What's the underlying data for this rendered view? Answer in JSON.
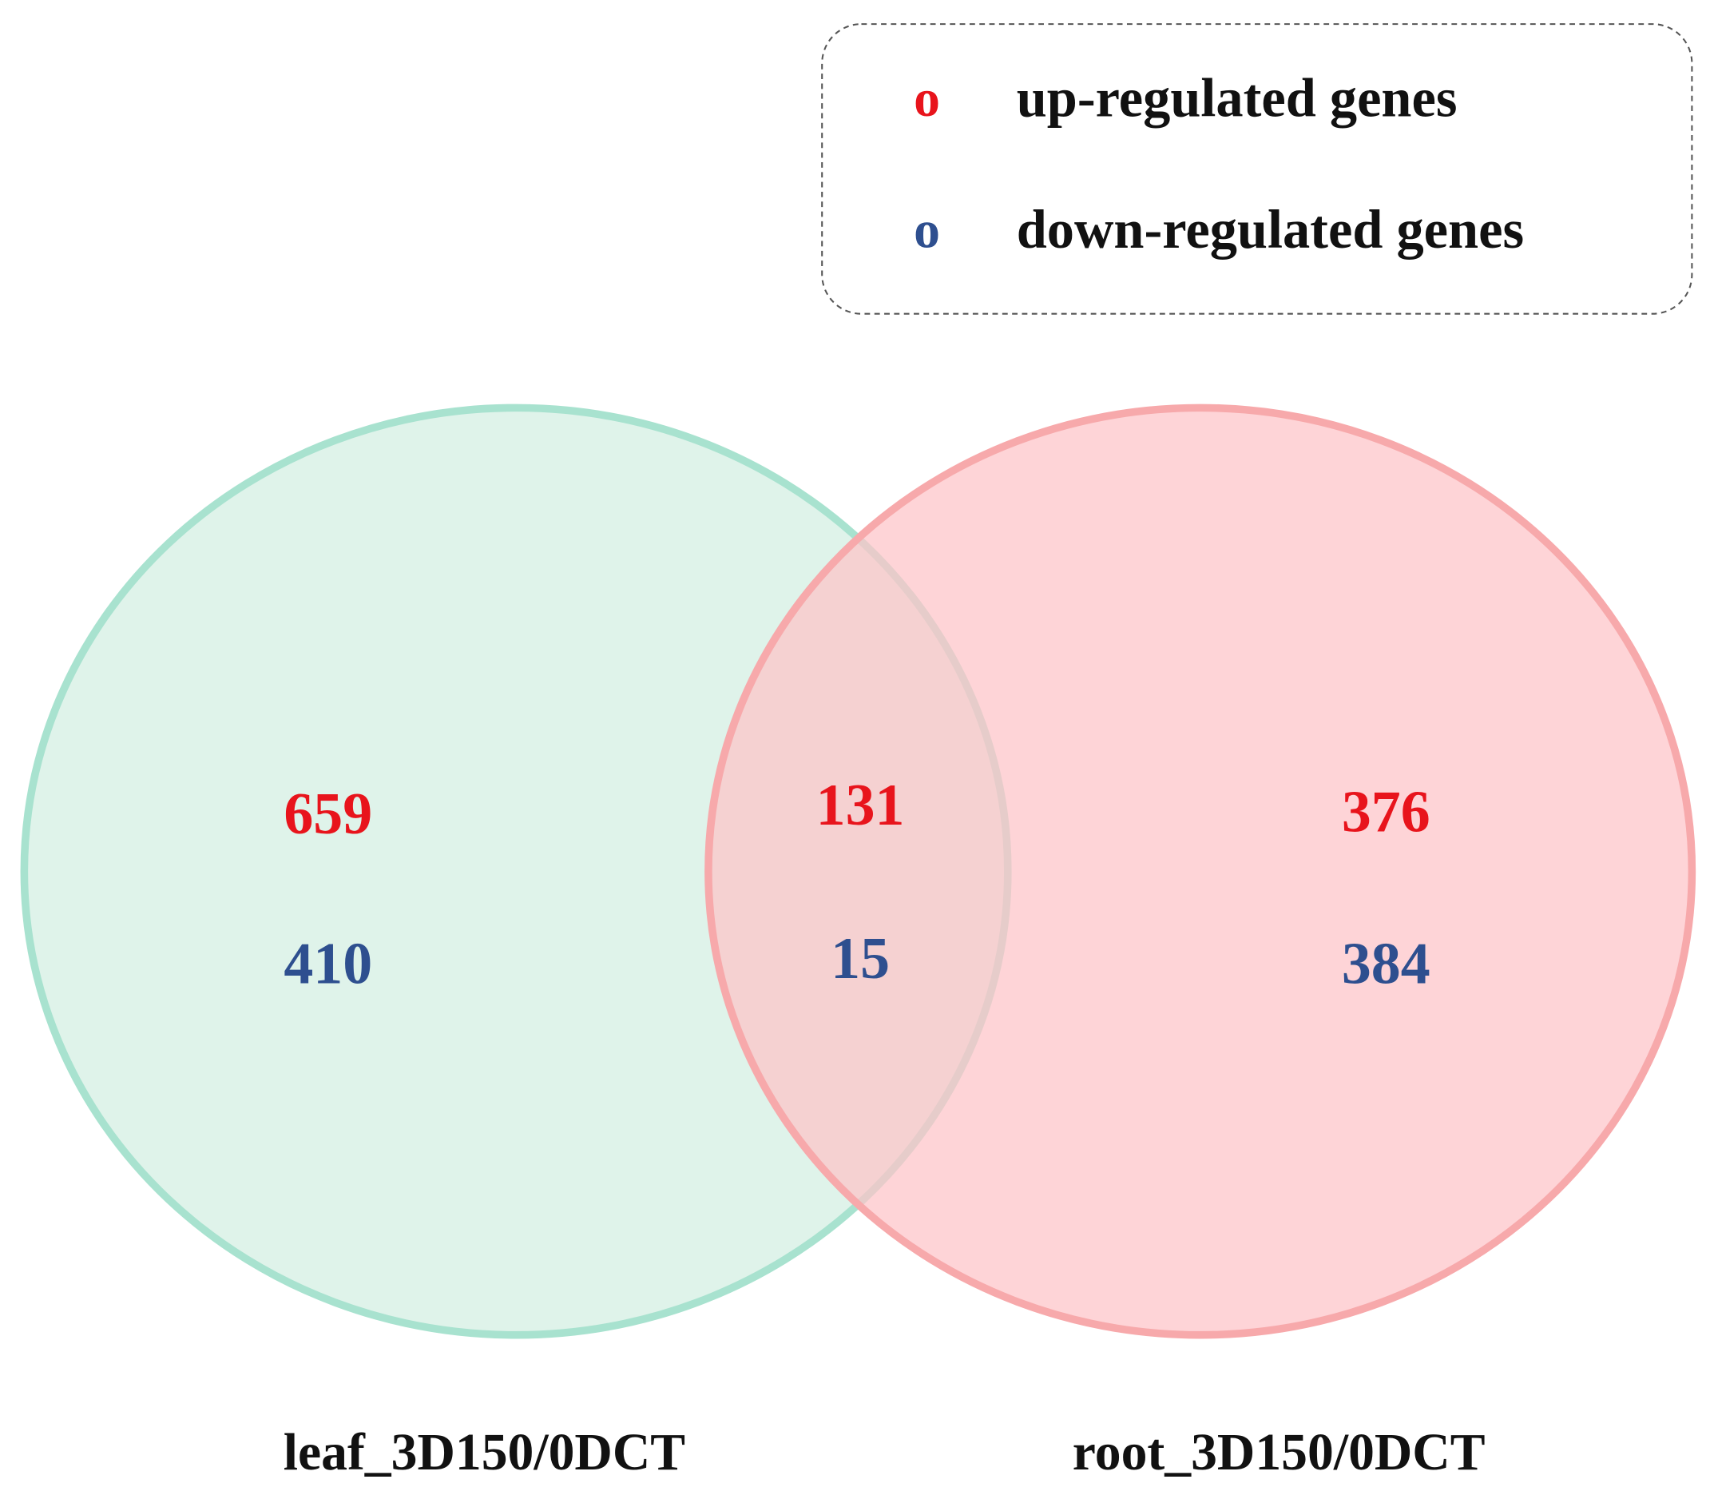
{
  "legend": {
    "items": [
      {
        "marker": "o",
        "label": "up-regulated genes"
      },
      {
        "marker": "o",
        "label": "down-regulated genes"
      }
    ]
  },
  "sets": [
    {
      "label": "leaf_3D150/0DCT",
      "up": 659,
      "down": 410
    },
    {
      "label": "root_3D150/0DCT",
      "up": 376,
      "down": 384
    }
  ],
  "intersection": {
    "up": 131,
    "down": 15
  }
}
